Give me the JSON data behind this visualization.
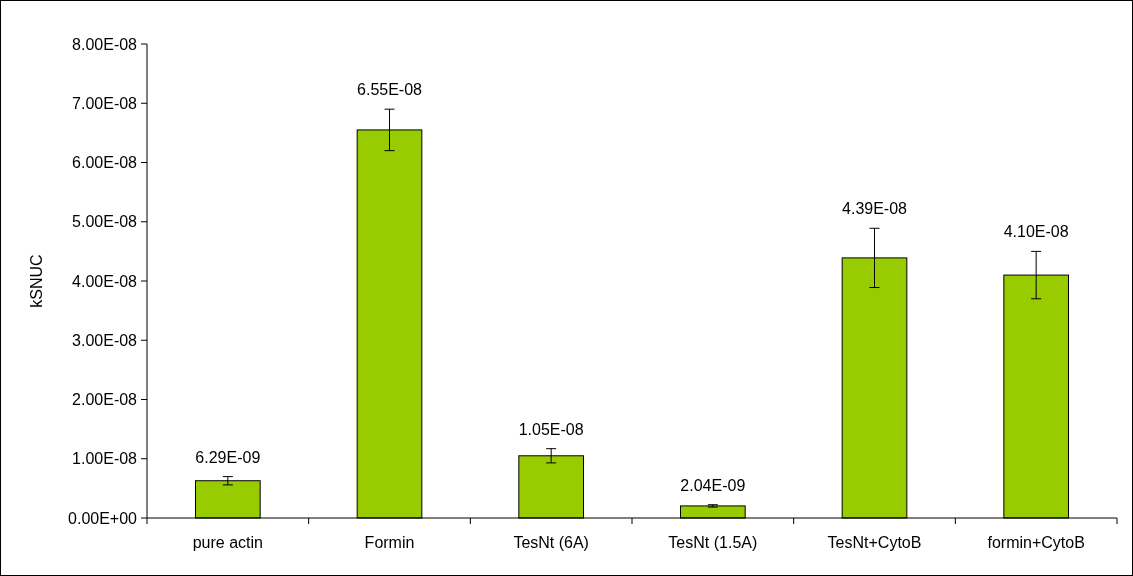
{
  "chart_data": {
    "type": "bar",
    "ylabel": "kSNUC",
    "categories": [
      "pure actin",
      "Formin",
      "TesNt (6A)",
      "TesNt (1.5A)",
      "TesNt+CytoB",
      "formin+CytoB"
    ],
    "values": [
      6.29e-09,
      6.55e-08,
      1.05e-08,
      2.04e-09,
      4.39e-08,
      4.1e-08
    ],
    "errors": [
      7e-10,
      3.5e-09,
      1.2e-09,
      2e-10,
      5e-09,
      4e-09
    ],
    "value_labels": [
      "6.29E-09",
      "6.55E-08",
      "1.05E-08",
      "2.04E-09",
      "4.39E-08",
      "4.10E-08"
    ],
    "color": "#99cc00",
    "ylim": [
      0,
      8e-08
    ],
    "yticks": [
      {
        "value": 0,
        "label": "0.00E+00"
      },
      {
        "value": 1e-08,
        "label": "1.00E-08"
      },
      {
        "value": 2e-08,
        "label": "2.00E-08"
      },
      {
        "value": 3e-08,
        "label": "3.00E-08"
      },
      {
        "value": 4e-08,
        "label": "4.00E-08"
      },
      {
        "value": 5e-08,
        "label": "5.00E-08"
      },
      {
        "value": 6e-08,
        "label": "6.00E-08"
      },
      {
        "value": 7e-08,
        "label": "7.00E-08"
      },
      {
        "value": 8e-08,
        "label": "8.00E-08"
      }
    ],
    "grid": false
  }
}
